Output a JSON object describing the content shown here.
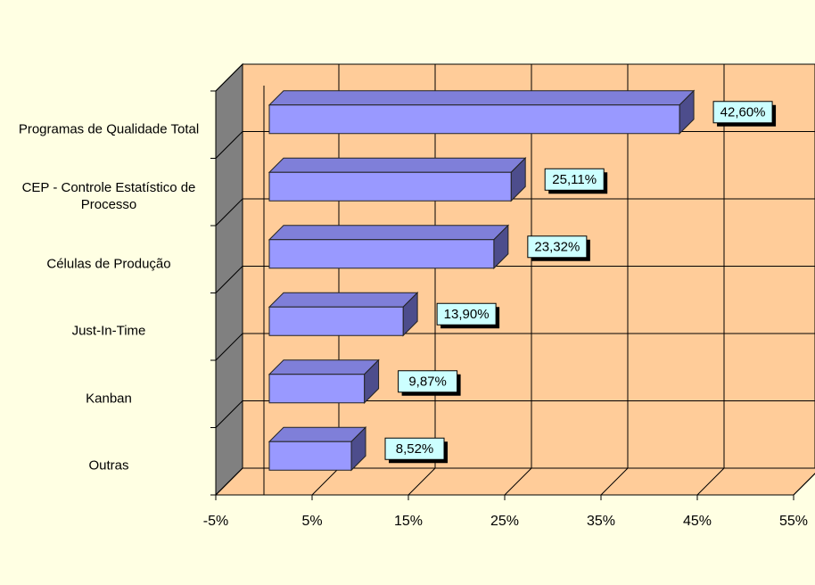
{
  "chart_data": {
    "type": "bar3d-horizontal",
    "categories": [
      "Programas de Qualidade Total",
      "CEP - Controle Estatístico de Processo",
      "Células de Produção",
      "Just-In-Time",
      "Kanban",
      "Outras"
    ],
    "values": [
      42.6,
      25.11,
      23.32,
      13.9,
      9.87,
      8.52
    ],
    "value_labels": [
      "42,60%",
      "25,11%",
      "23,32%",
      "13,90%",
      "9,87%",
      "8,52%"
    ],
    "color": "#9999ff",
    "xlim": [
      -5,
      55
    ],
    "xticks": [
      {
        "value": -5,
        "label": "-5%"
      },
      {
        "value": 5,
        "label": "5%"
      },
      {
        "value": 15,
        "label": "15%"
      },
      {
        "value": 25,
        "label": "25%"
      },
      {
        "value": 35,
        "label": "35%"
      },
      {
        "value": 45,
        "label": "45%"
      },
      {
        "value": 55,
        "label": "55%"
      }
    ],
    "grid": true
  }
}
